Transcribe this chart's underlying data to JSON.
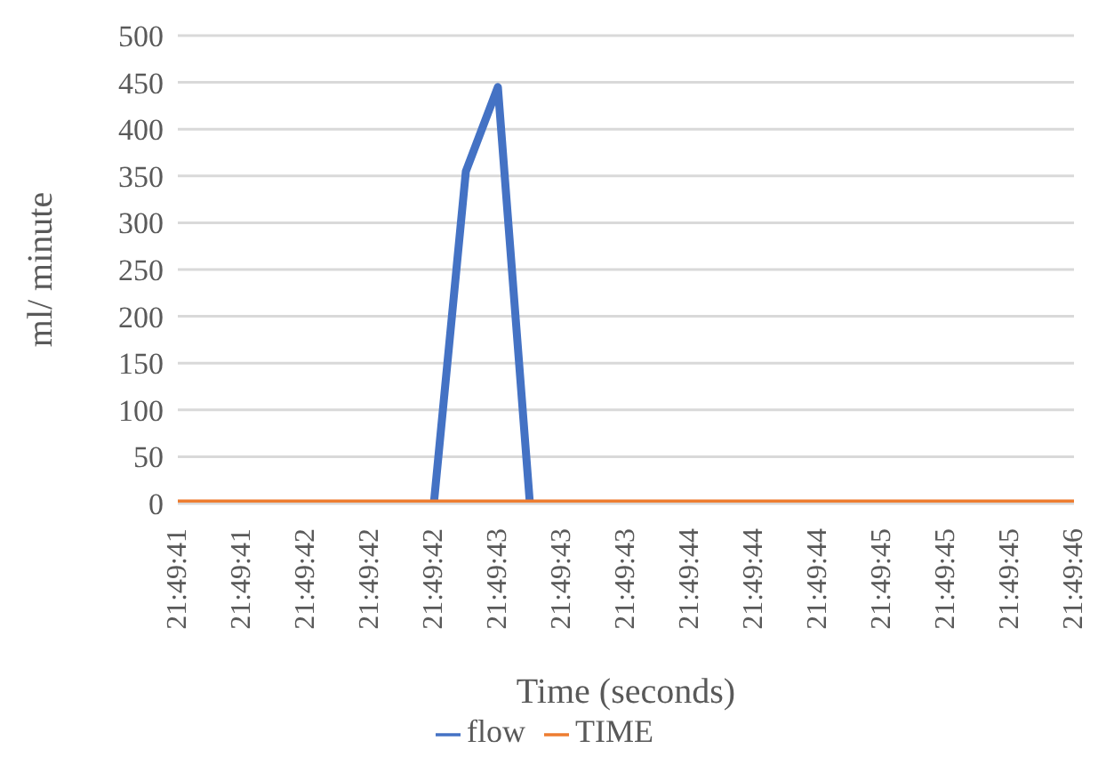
{
  "chart_data": {
    "type": "line",
    "xlabel": "Time (seconds)",
    "ylabel": "ml/ minute",
    "categories": [
      "21:49:41",
      null,
      "21:49:41",
      null,
      "21:49:42",
      null,
      "21:49:42",
      null,
      "21:49:42",
      null,
      "21:49:43",
      null,
      "21:49:43",
      null,
      "21:49:43",
      null,
      "21:49:44",
      null,
      "21:49:44",
      null,
      "21:49:44",
      null,
      "21:49:45",
      null,
      "21:49:45",
      null,
      "21:49:45",
      null,
      "21:49:46"
    ],
    "series": [
      {
        "name": "flow",
        "color": "#4472c4",
        "values": [
          null,
          null,
          null,
          null,
          null,
          null,
          null,
          null,
          0,
          355,
          445,
          0,
          null,
          null,
          null,
          null,
          null,
          null,
          null,
          null,
          null,
          null,
          null,
          null,
          null,
          null,
          null,
          null,
          null
        ]
      },
      {
        "name": "TIME",
        "color": "#ed7d31",
        "values": [
          0,
          0,
          0,
          0,
          0,
          0,
          0,
          0,
          0,
          0,
          0,
          0,
          0,
          0,
          0,
          0,
          0,
          0,
          0,
          0,
          0,
          0,
          0,
          0,
          0,
          0,
          0,
          0,
          0
        ]
      }
    ],
    "ylim": [
      0,
      500
    ],
    "yticks": [
      0,
      50,
      100,
      150,
      200,
      250,
      300,
      350,
      400,
      450,
      500
    ],
    "grid": "y",
    "legend": "bottom",
    "marker": "none",
    "line_style": "solid"
  }
}
